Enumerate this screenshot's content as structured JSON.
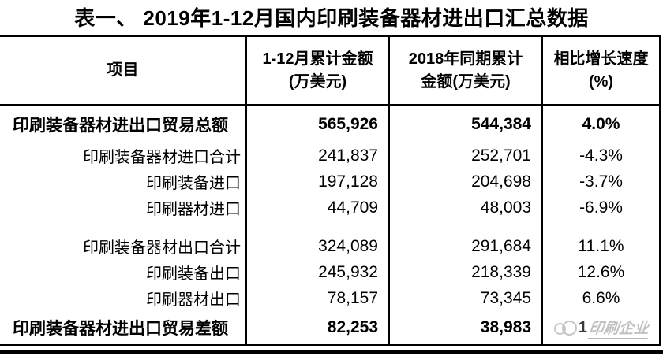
{
  "title": "表一、 2019年1-12月国内印刷装备器材进出口汇总数据",
  "table": {
    "headers": [
      "项目",
      "1-12月累计金额\n(万美元)",
      "2018年同期累计\n金额(万美元)",
      "相比增长速度\n(%)"
    ],
    "rows": [
      {
        "label": "印刷装备器材进出口贸易总额",
        "y2019": "565,926",
        "y2018": "544,384",
        "growth": "4.0%"
      },
      {
        "label": "印刷装备器材进口合计",
        "y2019": "241,837",
        "y2018": "252,701",
        "growth": "-4.3%"
      },
      {
        "label": "印刷装备进口",
        "y2019": "197,128",
        "y2018": "204,698",
        "growth": "-3.7%"
      },
      {
        "label": "印刷器材进口",
        "y2019": "44,709",
        "y2018": "48,003",
        "growth": "-6.9%"
      },
      {
        "label": "印刷装备器材出口合计",
        "y2019": "324,089",
        "y2018": "291,684",
        "growth": "11.1%"
      },
      {
        "label": "印刷装备出口",
        "y2019": "245,932",
        "y2018": "218,339",
        "growth": "12.6%"
      },
      {
        "label": "印刷器材出口",
        "y2019": "78,157",
        "y2018": "73,345",
        "growth": "6.6%"
      },
      {
        "label": "印刷装备器材进出口贸易差额",
        "y2019": "82,253",
        "y2018": "38,983",
        "growth": ""
      }
    ]
  },
  "watermark": {
    "number": "1",
    "text": "印刷企业"
  },
  "colors": {
    "line": "#000000",
    "text": "#000000",
    "watermark": "#c2c2c2",
    "background": "#ffffff"
  },
  "chart_data": {
    "type": "table",
    "title": "表一、 2019年1-12月国内印刷装备器材进出口汇总数据",
    "columns": [
      "项目",
      "1-12月累计金额(万美元)",
      "2018年同期累计金额(万美元)",
      "相比增长速度(%)"
    ],
    "rows": [
      [
        "印刷装备器材进出口贸易总额",
        565926,
        544384,
        "4.0%"
      ],
      [
        "印刷装备器材进口合计",
        241837,
        252701,
        "-4.3%"
      ],
      [
        "印刷装备进口",
        197128,
        204698,
        "-3.7%"
      ],
      [
        "印刷器材进口",
        44709,
        48003,
        "-6.9%"
      ],
      [
        "印刷装备器材出口合计",
        324089,
        291684,
        "11.1%"
      ],
      [
        "印刷装备出口",
        245932,
        218339,
        "12.6%"
      ],
      [
        "印刷器材出口",
        78157,
        73345,
        "6.6%"
      ],
      [
        "印刷装备器材进出口贸易差额",
        82253,
        38983,
        null
      ]
    ],
    "notes": "bold rows: first (trade total) and last (trade balance); blank spacer row between import group and export group; watermark logo+text over last growth cell"
  }
}
